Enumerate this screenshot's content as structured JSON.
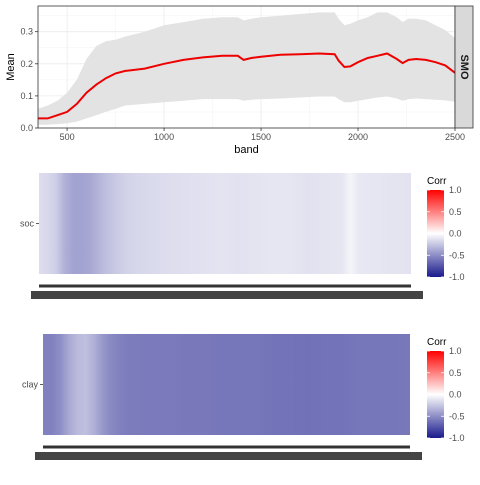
{
  "chart_data": [
    {
      "type": "area",
      "title": "",
      "xlabel": "band",
      "ylabel": "Mean",
      "strip_label": "SMO",
      "xlim": [
        350,
        2500
      ],
      "ylim": [
        0,
        0.38
      ],
      "xticks": [
        500,
        1000,
        1500,
        2000,
        2500
      ],
      "yticks": [
        0.0,
        0.1,
        0.2,
        0.3
      ],
      "ytick_labels": [
        "0.0",
        "0.1",
        "0.2",
        "0.3"
      ],
      "grid": true,
      "colors": {
        "line": "#ee0000",
        "ribbon": "#e3e3e3",
        "panel_border": "#333333",
        "strip_fill": "#d9d9d9"
      },
      "series": [
        {
          "x": [
            350,
            400,
            450,
            500,
            550,
            600,
            650,
            700,
            750,
            800,
            900,
            1000,
            1100,
            1200,
            1300,
            1380,
            1410,
            1450,
            1500,
            1600,
            1700,
            1800,
            1880,
            1900,
            1930,
            1960,
            2000,
            2050,
            2100,
            2150,
            2200,
            2230,
            2260,
            2300,
            2350,
            2400,
            2450,
            2500
          ],
          "mean": [
            0.03,
            0.03,
            0.04,
            0.05,
            0.075,
            0.11,
            0.135,
            0.155,
            0.17,
            0.178,
            0.185,
            0.2,
            0.212,
            0.22,
            0.225,
            0.225,
            0.212,
            0.218,
            0.222,
            0.228,
            0.23,
            0.232,
            0.23,
            0.21,
            0.19,
            0.192,
            0.205,
            0.218,
            0.225,
            0.232,
            0.215,
            0.202,
            0.212,
            0.215,
            0.212,
            0.205,
            0.195,
            0.172
          ],
          "upper": [
            0.06,
            0.07,
            0.085,
            0.11,
            0.15,
            0.215,
            0.255,
            0.27,
            0.275,
            0.285,
            0.3,
            0.32,
            0.33,
            0.34,
            0.345,
            0.345,
            0.335,
            0.34,
            0.345,
            0.35,
            0.355,
            0.36,
            0.36,
            0.34,
            0.32,
            0.325,
            0.335,
            0.345,
            0.36,
            0.36,
            0.345,
            0.33,
            0.34,
            0.34,
            0.335,
            0.32,
            0.305,
            0.28
          ],
          "lower": [
            0.01,
            0.01,
            0.012,
            0.015,
            0.02,
            0.03,
            0.04,
            0.05,
            0.06,
            0.07,
            0.075,
            0.08,
            0.085,
            0.09,
            0.09,
            0.09,
            0.085,
            0.088,
            0.09,
            0.092,
            0.095,
            0.098,
            0.098,
            0.09,
            0.08,
            0.08,
            0.085,
            0.09,
            0.095,
            0.098,
            0.092,
            0.085,
            0.09,
            0.092,
            0.09,
            0.088,
            0.086,
            0.082
          ]
        }
      ]
    },
    {
      "type": "heatmap",
      "row_label": "soc",
      "legend_title": "Corr",
      "legend_ticks": [
        "1.0",
        "0.5",
        "0.0",
        "-0.5",
        "-1.0"
      ],
      "legend_values": [
        1.0,
        0.5,
        0.0,
        -0.5,
        -1.0
      ],
      "color_scale": {
        "low": "#1a1a8c",
        "mid": "#ffffff",
        "high": "#ff0000",
        "range": [
          -1,
          1
        ]
      },
      "bands": [
        350,
        400,
        450,
        500,
        550,
        600,
        650,
        700,
        750,
        800,
        850,
        900,
        950,
        1000,
        1100,
        1200,
        1300,
        1400,
        1500,
        1600,
        1700,
        1800,
        1900,
        2000,
        2100,
        2150,
        2200,
        2300,
        2400,
        2450,
        2500
      ],
      "values": [
        -0.15,
        -0.17,
        -0.22,
        -0.35,
        -0.4,
        -0.4,
        -0.38,
        -0.32,
        -0.27,
        -0.23,
        -0.2,
        -0.18,
        -0.17,
        -0.16,
        -0.15,
        -0.14,
        -0.13,
        -0.12,
        -0.13,
        -0.12,
        -0.11,
        -0.11,
        -0.13,
        -0.12,
        -0.11,
        -0.05,
        -0.1,
        -0.11,
        -0.12,
        -0.12,
        -0.13
      ]
    },
    {
      "type": "heatmap",
      "row_label": "clay",
      "legend_title": "Corr",
      "legend_ticks": [
        "1.0",
        "0.5",
        "0.0",
        "-0.5",
        "-1.0"
      ],
      "legend_values": [
        1.0,
        0.5,
        0.0,
        -0.5,
        -1.0
      ],
      "color_scale": {
        "low": "#1a1a8c",
        "mid": "#ffffff",
        "high": "#ff0000",
        "range": [
          -1,
          1
        ]
      },
      "bands": [
        350,
        400,
        450,
        500,
        550,
        600,
        650,
        700,
        750,
        800,
        850,
        900,
        950,
        1000,
        1100,
        1200,
        1300,
        1400,
        1500,
        1600,
        1700,
        1800,
        1900,
        2000,
        2100,
        2200,
        2300,
        2400,
        2500
      ],
      "values": [
        -0.55,
        -0.55,
        -0.5,
        -0.38,
        -0.3,
        -0.28,
        -0.35,
        -0.45,
        -0.52,
        -0.55,
        -0.57,
        -0.57,
        -0.58,
        -0.58,
        -0.58,
        -0.59,
        -0.59,
        -0.6,
        -0.6,
        -0.6,
        -0.61,
        -0.61,
        -0.62,
        -0.61,
        -0.61,
        -0.6,
        -0.6,
        -0.6,
        -0.59
      ]
    }
  ]
}
